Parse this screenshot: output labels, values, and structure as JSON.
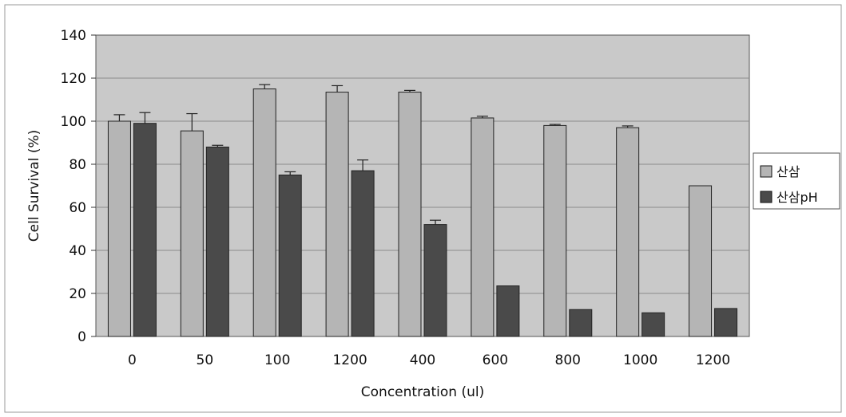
{
  "chart_data": {
    "type": "bar",
    "categories": [
      "0",
      "50",
      "100",
      "1200",
      "400",
      "600",
      "800",
      "1000",
      "1200"
    ],
    "series": [
      {
        "name": "산삼",
        "values": [
          100,
          95.5,
          115,
          113.5,
          113.5,
          101.5,
          98,
          97,
          70
        ],
        "errors": [
          3,
          8,
          2,
          3,
          0.8,
          0.8,
          0.5,
          0.8,
          0
        ],
        "color": "#b5b5b5"
      },
      {
        "name": "산삼pH",
        "values": [
          99,
          88,
          75,
          77,
          52,
          23.5,
          12.5,
          11,
          13
        ],
        "errors": [
          5,
          0.8,
          1.5,
          5,
          2,
          0,
          0,
          0,
          0
        ],
        "color": "#4a4a4a"
      }
    ],
    "title": "",
    "xlabel": "Concentration (ul)",
    "ylabel": "Cell Survival (%)",
    "ylim": [
      0,
      140
    ],
    "yticks": [
      "0",
      "20",
      "40",
      "60",
      "80",
      "100",
      "120",
      "140"
    ],
    "grid": true,
    "legend_position": "right",
    "plot_background": "#c9c9c9"
  }
}
